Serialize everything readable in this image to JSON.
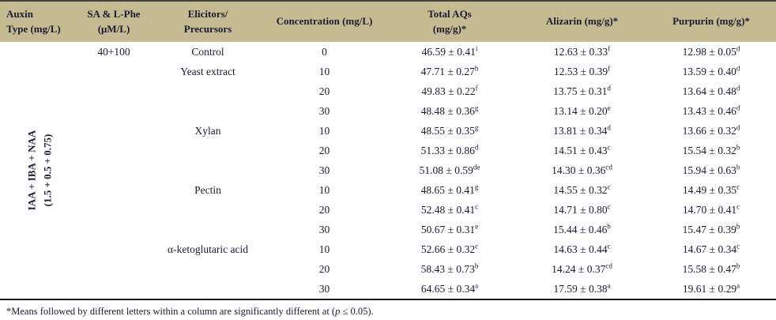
{
  "colors": {
    "header_bg": "#c4bb93",
    "top_border": "#45433a",
    "text": "#1c1c2e",
    "rule": "#1b1b1b"
  },
  "header": {
    "columns": [
      {
        "line1": "Auxin",
        "line2": "Type (mg/L)"
      },
      {
        "line1": "SA & L-Phe",
        "line2": "(μM/L)"
      },
      {
        "line1": "Elicitors/",
        "line2": "Precursors"
      },
      {
        "line1": "Concentration (mg/L)",
        "line2": ""
      },
      {
        "line1": "Total AQs",
        "line2": "(mg/g)*"
      },
      {
        "line1": "Alizarin (mg/g)*",
        "line2": ""
      },
      {
        "line1": "Purpurin (mg/g)*",
        "line2": ""
      }
    ]
  },
  "auxin_group": {
    "line1": "IAA + IBA + NAA",
    "line2": "(1.5 + 0.5 + 0.75)"
  },
  "sa_lphe": "40+100",
  "rows": [
    {
      "elicitor": "Control",
      "concentration": "0",
      "total_aqs": {
        "value": "46.59 ± 0.41",
        "sig": "i"
      },
      "alizarin": {
        "value": "12.63 ± 0.33",
        "sig": "f"
      },
      "purpurin": {
        "value": "12.98 ± 0.05",
        "sig": "d"
      }
    },
    {
      "elicitor": "Yeast extract",
      "concentration": "10",
      "total_aqs": {
        "value": "47.71 ± 0.27",
        "sig": "h"
      },
      "alizarin": {
        "value": "12.53 ± 0.39",
        "sig": "f"
      },
      "purpurin": {
        "value": "13.59 ± 0.40",
        "sig": "d"
      }
    },
    {
      "elicitor": "",
      "concentration": "20",
      "total_aqs": {
        "value": "49.83 ± 0.22",
        "sig": "f"
      },
      "alizarin": {
        "value": "13.75 ± 0.31",
        "sig": "d"
      },
      "purpurin": {
        "value": "13.64 ± 0.48",
        "sig": "d"
      }
    },
    {
      "elicitor": "",
      "concentration": "30",
      "total_aqs": {
        "value": "48.48 ± 0.36",
        "sig": "g"
      },
      "alizarin": {
        "value": "13.14 ± 0.20",
        "sig": "e"
      },
      "purpurin": {
        "value": "13.43 ± 0.46",
        "sig": "d"
      }
    },
    {
      "elicitor": "Xylan",
      "concentration": "10",
      "total_aqs": {
        "value": "48.55 ± 0.35",
        "sig": "g"
      },
      "alizarin": {
        "value": "13.81 ± 0.34",
        "sig": "d"
      },
      "purpurin": {
        "value": "13.66 ± 0.32",
        "sig": "d"
      }
    },
    {
      "elicitor": "",
      "concentration": "20",
      "total_aqs": {
        "value": "51.33 ± 0.86",
        "sig": "d"
      },
      "alizarin": {
        "value": "14.51 ± 0.43",
        "sig": "c"
      },
      "purpurin": {
        "value": "15.54 ± 0.32",
        "sig": "b"
      }
    },
    {
      "elicitor": "",
      "concentration": "30",
      "total_aqs": {
        "value": "51.08 ± 0.59",
        "sig": "de"
      },
      "alizarin": {
        "value": "14.30 ± 0.36",
        "sig": "cd"
      },
      "purpurin": {
        "value": "15.94 ± 0.63",
        "sig": "b"
      }
    },
    {
      "elicitor": "Pectin",
      "concentration": "10",
      "total_aqs": {
        "value": "48.65 ± 0.41",
        "sig": "g"
      },
      "alizarin": {
        "value": "14.55 ± 0.32",
        "sig": "c"
      },
      "purpurin": {
        "value": "14.49 ± 0.35",
        "sig": "c"
      }
    },
    {
      "elicitor": "",
      "concentration": "20",
      "total_aqs": {
        "value": "52.48 ± 0.41",
        "sig": "c"
      },
      "alizarin": {
        "value": "14.71 ± 0.80",
        "sig": "c"
      },
      "purpurin": {
        "value": "14.70 ± 0.41",
        "sig": "c"
      }
    },
    {
      "elicitor": "",
      "concentration": "30",
      "total_aqs": {
        "value": "50.67 ± 0.31",
        "sig": "e"
      },
      "alizarin": {
        "value": "15.44 ± 0.46",
        "sig": "b"
      },
      "purpurin": {
        "value": "15.47 ± 0.39",
        "sig": "b"
      }
    },
    {
      "elicitor": "α-ketoglutaric acid",
      "concentration": "10",
      "total_aqs": {
        "value": "52.66 ± 0.32",
        "sig": "c"
      },
      "alizarin": {
        "value": "14.63 ± 0.44",
        "sig": "c"
      },
      "purpurin": {
        "value": "14.67 ± 0.34",
        "sig": "c"
      }
    },
    {
      "elicitor": "",
      "concentration": "20",
      "total_aqs": {
        "value": "58.43 ± 0.73",
        "sig": "b"
      },
      "alizarin": {
        "value": "14.24 ± 0.37",
        "sig": "cd"
      },
      "purpurin": {
        "value": "15.58 ± 0.47",
        "sig": "b"
      }
    },
    {
      "elicitor": "",
      "concentration": "30",
      "total_aqs": {
        "value": "64.65 ± 0.34",
        "sig": "a"
      },
      "alizarin": {
        "value": "17.59 ± 0.38",
        "sig": "a"
      },
      "purpurin": {
        "value": "19.61 ± 0.29",
        "sig": "a"
      }
    }
  ],
  "footnote": {
    "pre": "*Means followed by different letters within a column are significantly different at (",
    "p": "p",
    "post": " ≤ 0.05)."
  }
}
